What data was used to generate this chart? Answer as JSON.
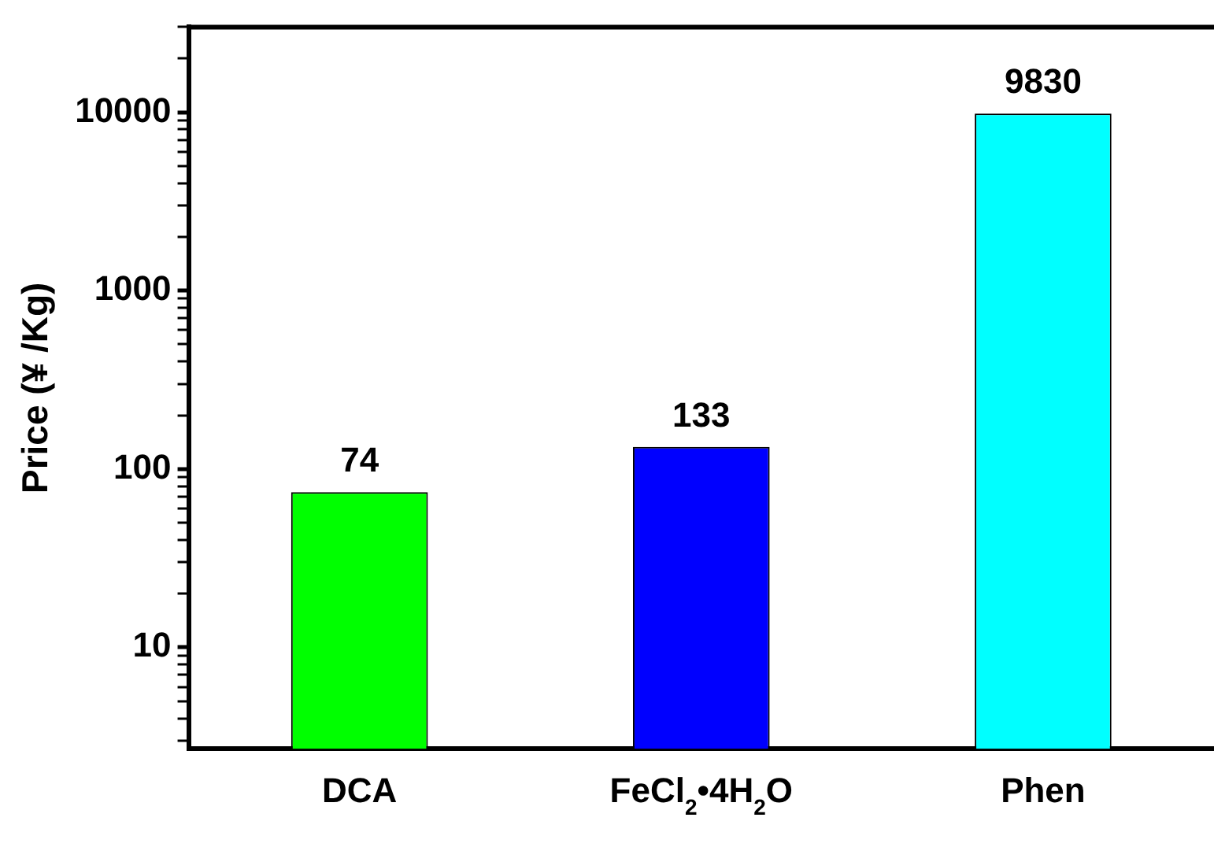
{
  "chart_data": {
    "type": "bar",
    "ylabel": "Price (¥ /Kg)",
    "categories": [
      "DCA",
      "FeCl$_{2}$•4H$_{2}$O",
      "Phen"
    ],
    "values": [
      74,
      133,
      9830
    ],
    "colors": [
      "#00ff00",
      "#0000ff",
      "#00ffff"
    ],
    "log": true,
    "ylim": [
      2.7,
      30000
    ],
    "yticks": [
      {
        "value": 3,
        "label": null
      },
      {
        "value": 4,
        "label": null
      },
      {
        "value": 5,
        "label": null
      },
      {
        "value": 6,
        "label": null
      },
      {
        "value": 7,
        "label": null
      },
      {
        "value": 8,
        "label": null
      },
      {
        "value": 9,
        "label": null
      },
      10,
      {
        "value": 20,
        "label": null
      },
      {
        "value": 30,
        "label": null
      },
      {
        "value": 40,
        "label": null
      },
      {
        "value": 50,
        "label": null
      },
      {
        "value": 60,
        "label": null
      },
      {
        "value": 70,
        "label": null
      },
      {
        "value": 80,
        "label": null
      },
      {
        "value": 90,
        "label": null
      },
      100,
      {
        "value": 200,
        "label": null
      },
      {
        "value": 300,
        "label": null
      },
      {
        "value": 400,
        "label": null
      },
      {
        "value": 500,
        "label": null
      },
      {
        "value": 600,
        "label": null
      },
      {
        "value": 700,
        "label": null
      },
      {
        "value": 800,
        "label": null
      },
      {
        "value": 900,
        "label": null
      },
      1000,
      {
        "value": 2000,
        "label": null
      },
      {
        "value": 3000,
        "label": null
      },
      {
        "value": 4000,
        "label": null
      },
      {
        "value": 5000,
        "label": null
      },
      {
        "value": 6000,
        "label": null
      },
      {
        "value": 7000,
        "label": null
      },
      {
        "value": 8000,
        "label": null
      },
      {
        "value": 9000,
        "label": null
      },
      10000,
      {
        "value": 20000,
        "label": null
      },
      {
        "value": 30000,
        "label": null
      }
    ],
    "data_labels": true,
    "grid": false,
    "legend": false
  }
}
